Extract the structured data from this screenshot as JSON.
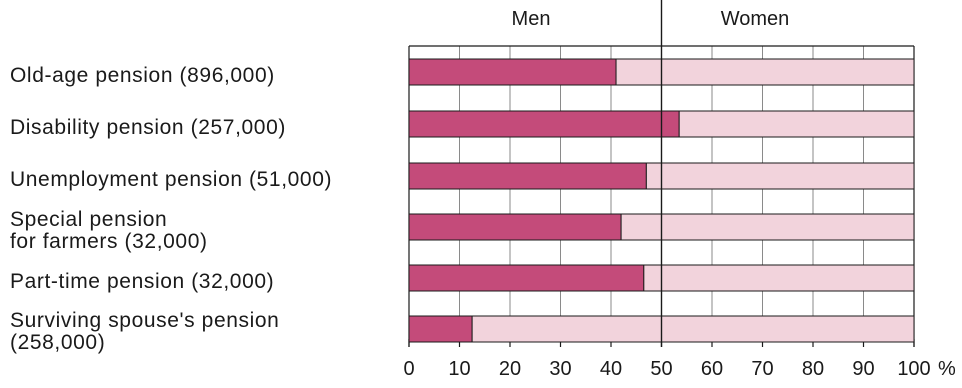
{
  "chart_data": {
    "type": "bar",
    "stacked": true,
    "orientation": "horizontal",
    "title": "",
    "legend": [
      "Men",
      "Women"
    ],
    "legend_position": "top",
    "categories": [
      [
        "Old-age pension (896,000)"
      ],
      [
        "Disability pension (257,000)"
      ],
      [
        "Unemployment pension (51,000)"
      ],
      [
        "Special pension",
        "for farmers (32,000)"
      ],
      [
        "Part-time pension (32,000)"
      ],
      [
        "Surviving spouse's pension",
        "(258,000)"
      ]
    ],
    "series": [
      {
        "name": "Men",
        "values": [
          41,
          53.5,
          47,
          42,
          46.5,
          12.5
        ]
      },
      {
        "name": "Women",
        "values": [
          59,
          46.5,
          53,
          58,
          53.5,
          87.5
        ]
      }
    ],
    "xlim": [
      0,
      100
    ],
    "xticks": [
      "0",
      "10",
      "20",
      "30",
      "40",
      "50",
      "60",
      "70",
      "80",
      "90",
      "100"
    ],
    "x_unit": "%",
    "reference_line": 50,
    "grid": true,
    "colors": {
      "men": "#c44b7a",
      "women": "#f2d3dc",
      "grid": "#8a8a8a",
      "border": "#1a1a1a"
    }
  }
}
